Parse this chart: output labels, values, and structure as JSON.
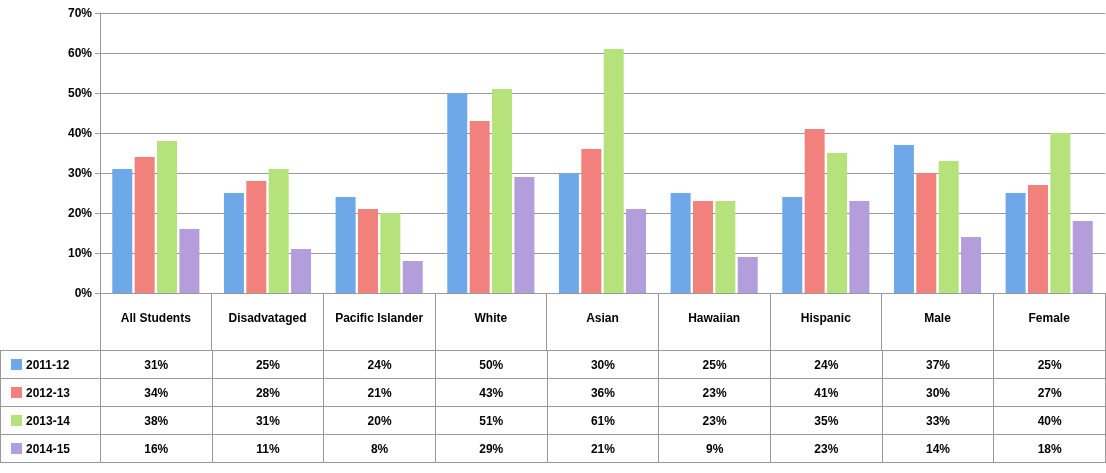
{
  "chart_data": {
    "type": "bar",
    "categories": [
      "All Students",
      "Disadvataged",
      "Pacific Islander",
      "White",
      "Asian",
      "Hawaiian",
      "Hispanic",
      "Male",
      "Female"
    ],
    "series": [
      {
        "name": "2011-12",
        "color": "#6fa8e8",
        "values": [
          31,
          25,
          24,
          50,
          30,
          25,
          24,
          37,
          25
        ],
        "value_labels": [
          "31%",
          "25%",
          "24%",
          "50%",
          "30%",
          "25%",
          "24%",
          "37%",
          "25%"
        ]
      },
      {
        "name": "2012-13",
        "color": "#f2807c",
        "values": [
          34,
          28,
          21,
          43,
          36,
          23,
          41,
          30,
          27
        ],
        "value_labels": [
          "34%",
          "28%",
          "21%",
          "43%",
          "36%",
          "23%",
          "41%",
          "30%",
          "27%"
        ]
      },
      {
        "name": "2013-14",
        "color": "#b5e27a",
        "values": [
          38,
          31,
          20,
          51,
          61,
          23,
          35,
          33,
          40
        ],
        "value_labels": [
          "38%",
          "31%",
          "20%",
          "51%",
          "61%",
          "23%",
          "35%",
          "33%",
          "40%"
        ]
      },
      {
        "name": "2014-15",
        "color": "#b39ddb",
        "values": [
          16,
          11,
          8,
          29,
          21,
          9,
          23,
          14,
          18
        ],
        "value_labels": [
          "16%",
          "11%",
          "8%",
          "29%",
          "21%",
          "9%",
          "23%",
          "14%",
          "18%"
        ]
      }
    ],
    "ylim": [
      0,
      70
    ],
    "yticks": [
      {
        "value": 0,
        "label": "0%"
      },
      {
        "value": 10,
        "label": "10%"
      },
      {
        "value": 20,
        "label": "20%"
      },
      {
        "value": 30,
        "label": "30%"
      },
      {
        "value": 40,
        "label": "40%"
      },
      {
        "value": 50,
        "label": "50%"
      },
      {
        "value": 60,
        "label": "60%"
      },
      {
        "value": 70,
        "label": "70%"
      }
    ],
    "grid": "y",
    "legend": "bottom left"
  }
}
